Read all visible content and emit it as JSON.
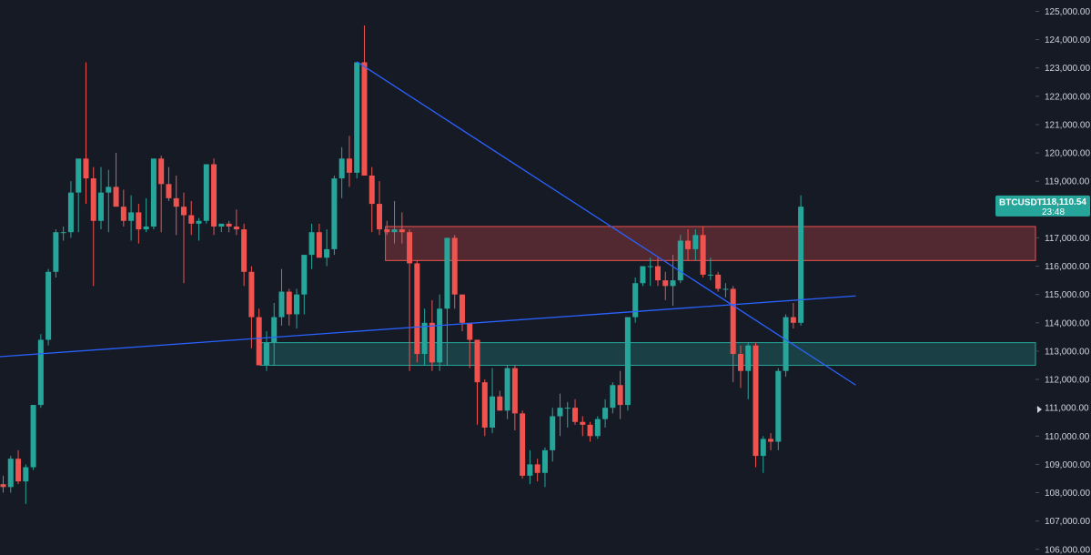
{
  "chart_data": {
    "type": "candlestick",
    "symbol": "BTCUSDT",
    "last_price": "118,110.54",
    "countdown": "23:48",
    "ylim": [
      105800,
      125400
    ],
    "y_ticks": [
      106000,
      107000,
      108000,
      109000,
      110000,
      111000,
      112000,
      113000,
      114000,
      115000,
      116000,
      117000,
      118000,
      119000,
      120000,
      121000,
      122000,
      123000,
      124000,
      125000
    ],
    "y_tick_labels": [
      "106,000.00",
      "107,000.00",
      "108,000.00",
      "109,000.00",
      "110,000.00",
      "111,000.00",
      "112,000.00",
      "113,000.00",
      "114,000.00",
      "115,000.00",
      "116,000.00",
      "117,000.00",
      "118,000.00",
      "119,000.00",
      "120,000.00",
      "121,000.00",
      "122,000.00",
      "123,000.00",
      "124,000.00",
      "125,000.00"
    ],
    "grid": false,
    "colors": {
      "up": "#26a69a",
      "down": "#ef5350",
      "background": "#161a25",
      "trendline": "#2962ff",
      "tag": "#26a69a"
    },
    "candles": [
      [
        108.3,
        108.6,
        108.0,
        108.2
      ],
      [
        108.2,
        109.3,
        108.0,
        109.2
      ],
      [
        109.2,
        109.5,
        108.3,
        108.4
      ],
      [
        108.4,
        109.0,
        107.6,
        108.9
      ],
      [
        108.9,
        111.1,
        108.8,
        111.1
      ],
      [
        111.1,
        113.6,
        111.0,
        113.4
      ],
      [
        113.4,
        115.9,
        113.2,
        115.8
      ],
      [
        115.8,
        117.3,
        115.6,
        117.2
      ],
      [
        117.2,
        117.4,
        116.9,
        117.2
      ],
      [
        117.2,
        119.0,
        117.0,
        118.6
      ],
      [
        118.6,
        119.8,
        117.2,
        119.8
      ],
      [
        119.8,
        123.2,
        118.2,
        119.1
      ],
      [
        119.1,
        119.5,
        115.3,
        117.6
      ],
      [
        117.6,
        119.5,
        117.3,
        118.6
      ],
      [
        118.6,
        119.4,
        117.2,
        118.8
      ],
      [
        118.8,
        120.0,
        118.2,
        118.1
      ],
      [
        118.1,
        118.7,
        117.4,
        117.6
      ],
      [
        117.6,
        118.5,
        116.9,
        117.9
      ],
      [
        117.9,
        118.2,
        116.8,
        117.3
      ],
      [
        117.3,
        118.4,
        117.2,
        117.4
      ],
      [
        117.4,
        119.8,
        117.3,
        119.8
      ],
      [
        119.8,
        119.9,
        117.2,
        118.9
      ],
      [
        118.9,
        119.5,
        118.3,
        118.4
      ],
      [
        118.4,
        119.2,
        117.1,
        118.1
      ],
      [
        118.1,
        118.6,
        115.4,
        117.8
      ],
      [
        117.8,
        118.3,
        117.1,
        117.5
      ],
      [
        117.5,
        117.7,
        116.9,
        117.6
      ],
      [
        117.6,
        119.6,
        117.5,
        119.6
      ],
      [
        119.6,
        119.8,
        117.1,
        117.4
      ],
      [
        117.4,
        117.5,
        117.2,
        117.5
      ],
      [
        117.5,
        117.6,
        117.2,
        117.4
      ],
      [
        117.4,
        118.0,
        117.1,
        117.3
      ],
      [
        117.3,
        117.5,
        115.3,
        115.8
      ],
      [
        115.8,
        116.0,
        113.1,
        114.2
      ],
      [
        114.2,
        114.5,
        112.5,
        112.5
      ],
      [
        112.5,
        113.7,
        112.3,
        113.3
      ],
      [
        113.3,
        114.7,
        112.5,
        114.2
      ],
      [
        114.2,
        115.9,
        113.9,
        115.1
      ],
      [
        115.1,
        115.2,
        113.9,
        114.3
      ],
      [
        114.3,
        115.2,
        113.8,
        115.0
      ],
      [
        115.0,
        116.4,
        114.3,
        116.4
      ],
      [
        116.4,
        117.5,
        115.9,
        117.2
      ],
      [
        117.2,
        117.5,
        116.3,
        116.3
      ],
      [
        116.3,
        117.3,
        116.0,
        116.6
      ],
      [
        116.6,
        119.2,
        116.4,
        119.1
      ],
      [
        119.1,
        120.2,
        118.4,
        119.8
      ],
      [
        119.8,
        120.6,
        118.8,
        119.3
      ],
      [
        119.3,
        123.2,
        119.1,
        123.2
      ],
      [
        123.2,
        124.5,
        119.5,
        119.2
      ],
      [
        119.2,
        119.5,
        117.2,
        118.2
      ],
      [
        118.2,
        119.0,
        117.1,
        117.3
      ],
      [
        117.3,
        117.6,
        117.1,
        117.2
      ],
      [
        117.2,
        118.3,
        116.8,
        117.3
      ],
      [
        117.3,
        117.9,
        116.8,
        117.2
      ],
      [
        117.2,
        117.3,
        112.3,
        116.1
      ],
      [
        116.1,
        116.2,
        112.6,
        112.9
      ],
      [
        112.9,
        114.5,
        112.5,
        114.0
      ],
      [
        114.0,
        114.8,
        112.3,
        112.6
      ],
      [
        112.6,
        115.0,
        112.3,
        114.5
      ],
      [
        114.5,
        117.0,
        112.5,
        117.0
      ],
      [
        117.0,
        117.1,
        114.5,
        115.0
      ],
      [
        115.0,
        115.0,
        113.7,
        114.0
      ],
      [
        114.0,
        114.0,
        112.4,
        113.4
      ],
      [
        113.4,
        113.4,
        110.4,
        111.9
      ],
      [
        111.9,
        112.0,
        110.0,
        110.3
      ],
      [
        110.3,
        112.4,
        110.1,
        111.4
      ],
      [
        111.4,
        111.6,
        110.9,
        110.9
      ],
      [
        110.9,
        112.5,
        110.6,
        112.4
      ],
      [
        112.4,
        112.5,
        110.2,
        110.8
      ],
      [
        110.8,
        110.9,
        108.5,
        108.6
      ],
      [
        108.6,
        109.5,
        108.3,
        109.0
      ],
      [
        109.0,
        109.2,
        108.4,
        108.7
      ],
      [
        108.7,
        109.6,
        108.2,
        109.5
      ],
      [
        109.5,
        111.0,
        109.1,
        110.7
      ],
      [
        110.7,
        111.5,
        110.0,
        111.0
      ],
      [
        111.0,
        111.2,
        110.3,
        111.0
      ],
      [
        111.0,
        111.3,
        110.4,
        110.5
      ],
      [
        110.5,
        110.7,
        110.0,
        110.4
      ],
      [
        110.4,
        110.5,
        109.8,
        110.0
      ],
      [
        110.0,
        110.7,
        109.9,
        110.6
      ],
      [
        110.6,
        111.3,
        110.3,
        111.0
      ],
      [
        111.0,
        111.9,
        110.8,
        111.8
      ],
      [
        111.8,
        112.3,
        110.6,
        111.1
      ],
      [
        111.1,
        114.2,
        110.9,
        114.2
      ],
      [
        114.2,
        115.6,
        114.0,
        115.4
      ],
      [
        115.4,
        116.0,
        115.3,
        116.0
      ],
      [
        116.0,
        116.3,
        115.3,
        116.0
      ],
      [
        116.0,
        116.3,
        115.3,
        115.5
      ],
      [
        115.5,
        115.8,
        114.8,
        115.3
      ],
      [
        115.3,
        116.4,
        114.6,
        115.5
      ],
      [
        115.5,
        117.1,
        115.4,
        116.9
      ],
      [
        116.9,
        117.3,
        116.2,
        116.6
      ],
      [
        116.6,
        117.3,
        116.2,
        117.1
      ],
      [
        117.1,
        117.4,
        115.6,
        115.7
      ],
      [
        115.7,
        116.3,
        115.5,
        115.7
      ],
      [
        115.7,
        115.8,
        115.1,
        115.2
      ],
      [
        115.2,
        115.4,
        114.9,
        115.2
      ],
      [
        115.2,
        115.3,
        111.9,
        112.9
      ],
      [
        112.9,
        113.2,
        111.7,
        112.3
      ],
      [
        112.3,
        113.3,
        111.3,
        113.2
      ],
      [
        113.2,
        113.3,
        108.9,
        109.3
      ],
      [
        109.3,
        110.0,
        108.7,
        109.9
      ],
      [
        109.9,
        110.1,
        109.5,
        109.8
      ],
      [
        109.8,
        112.4,
        109.5,
        112.3
      ],
      [
        112.3,
        114.3,
        112.1,
        114.2
      ],
      [
        114.2,
        114.7,
        113.8,
        114.0
      ],
      [
        114.0,
        118.5,
        113.9,
        118.1
      ]
    ],
    "trendlines": [
      {
        "name": "descending",
        "from": [
          47,
          123220
        ],
        "to": [
          113.3,
          111800
        ]
      },
      {
        "name": "ascending",
        "from": [
          -1.2,
          112790
        ],
        "to": [
          113.3,
          114950
        ]
      }
    ],
    "zones": [
      {
        "name": "resistance",
        "from_index": 50.8,
        "top": 117400,
        "bottom": 116200,
        "color": "#ef5350"
      },
      {
        "name": "support",
        "from_index": 34.2,
        "top": 113300,
        "bottom": 112500,
        "color": "#26a69a"
      }
    ]
  }
}
